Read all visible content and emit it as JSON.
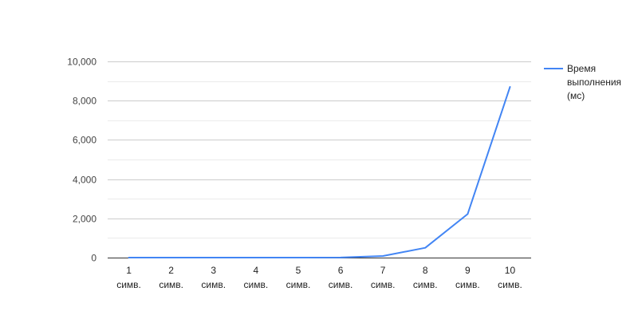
{
  "chart_data": {
    "type": "line",
    "categories": [
      "1 симв.",
      "2 симв.",
      "3 симв.",
      "4 симв.",
      "5 симв.",
      "6 симв.",
      "7 симв.",
      "8 симв.",
      "9 симв.",
      "10 симв."
    ],
    "category_lines": [
      [
        "1",
        "симв."
      ],
      [
        "2",
        "симв."
      ],
      [
        "3",
        "симв."
      ],
      [
        "4",
        "симв."
      ],
      [
        "5",
        "симв."
      ],
      [
        "6",
        "симв."
      ],
      [
        "7",
        "симв."
      ],
      [
        "8",
        "симв."
      ],
      [
        "9",
        "симв."
      ],
      [
        "10",
        "симв."
      ]
    ],
    "series": [
      {
        "name": "Время выполнения (мс)",
        "name_lines": [
          "Время",
          "выполнения",
          "(мс)"
        ],
        "color": "#4285f4",
        "values": [
          0,
          0,
          0,
          0,
          0,
          5,
          80,
          500,
          2220,
          8700
        ]
      }
    ],
    "y_ticks": [
      0,
      2000,
      4000,
      6000,
      8000,
      10000
    ],
    "y_tick_labels": [
      "0",
      "2,000",
      "4,000",
      "6,000",
      "8,000",
      "10,000"
    ],
    "ylim": [
      0,
      10000
    ],
    "grid": true,
    "legend_position": "right",
    "title": "",
    "xlabel": "",
    "ylabel": ""
  }
}
